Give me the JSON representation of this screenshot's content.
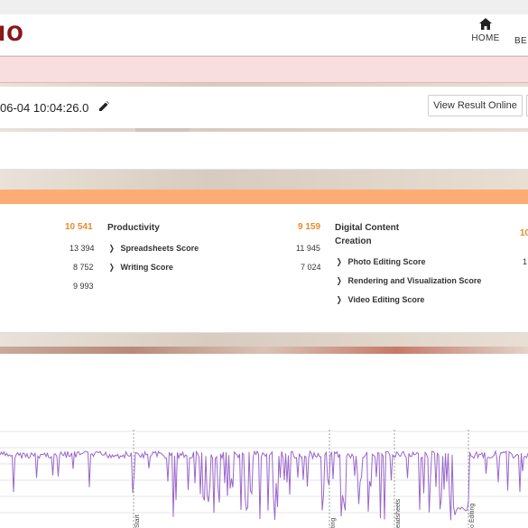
{
  "header": {
    "logo_text": "IO",
    "nav": [
      {
        "label": "HOME",
        "icon": "home-icon"
      },
      {
        "label": "BE"
      }
    ]
  },
  "result": {
    "datetime": "06-04 10:04:26.0",
    "edit_icon": "pencil-icon",
    "view_button": "View Result Online"
  },
  "scores": {
    "left_group": {
      "total": "10 541",
      "subscores": [
        "13 394",
        "8 752",
        "9 993"
      ]
    },
    "productivity": {
      "title": "Productivity",
      "total": "9 159",
      "items": [
        {
          "label": "Spreadsheets Score",
          "value": "11 945"
        },
        {
          "label": "Writing Score",
          "value": "7 024"
        }
      ]
    },
    "digital_content": {
      "title_line1": "Digital Content",
      "title_line2": "Creation",
      "total": "10",
      "items": [
        {
          "label": "Photo Editing Score",
          "value": "1"
        },
        {
          "label": "Rendering and Visualization Score"
        },
        {
          "label": "Video Editing Score"
        }
      ]
    }
  },
  "chart_data": {
    "type": "line",
    "series_color": "#9966cc",
    "markers": [
      "Start",
      "ting",
      "eadsheets",
      "o Editing"
    ],
    "grid": true
  }
}
